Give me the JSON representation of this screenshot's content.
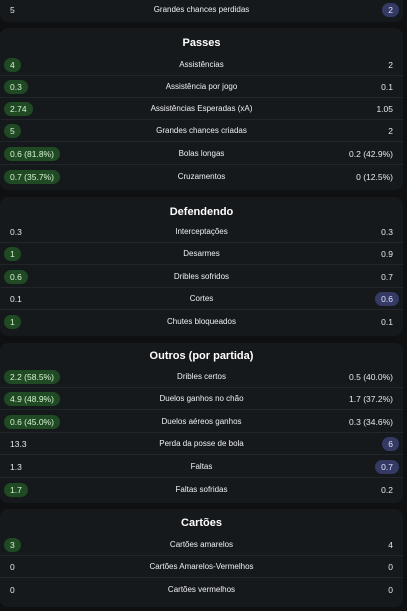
{
  "sections": [
    {
      "title": "",
      "rows": [
        {
          "label": "Grandes chances perdidas",
          "left": "5",
          "right": "2",
          "hl": "right"
        }
      ]
    },
    {
      "title": "Passes",
      "rows": [
        {
          "label": "Assistências",
          "left": "4",
          "right": "2",
          "hl": "left"
        },
        {
          "label": "Assistência por jogo",
          "left": "0.3",
          "right": "0.1",
          "hl": "left"
        },
        {
          "label": "Assistências Esperadas (xA)",
          "left": "2.74",
          "right": "1.05",
          "hl": "left"
        },
        {
          "label": "Grandes chances criadas",
          "left": "5",
          "right": "2",
          "hl": "left"
        },
        {
          "label": "Bolas longas",
          "left": "0.6 (81.8%)",
          "right": "0.2 (42.9%)",
          "hl": "left"
        },
        {
          "label": "Cruzamentos",
          "left": "0.7 (35.7%)",
          "right": "0 (12.5%)",
          "hl": "left"
        }
      ]
    },
    {
      "title": "Defendendo",
      "rows": [
        {
          "label": "Interceptações",
          "left": "0.3",
          "right": "0.3",
          "hl": "none"
        },
        {
          "label": "Desarmes",
          "left": "1",
          "right": "0.9",
          "hl": "left"
        },
        {
          "label": "Dribles sofridos",
          "left": "0.6",
          "right": "0.7",
          "hl": "left"
        },
        {
          "label": "Cortes",
          "left": "0.1",
          "right": "0.6",
          "hl": "right"
        },
        {
          "label": "Chutes bloqueados",
          "left": "1",
          "right": "0.1",
          "hl": "left"
        }
      ]
    },
    {
      "title": "Outros (por partida)",
      "rows": [
        {
          "label": "Dribles certos",
          "left": "2.2 (58.5%)",
          "right": "0.5 (40.0%)",
          "hl": "left"
        },
        {
          "label": "Duelos ganhos no chão",
          "left": "4.9 (48.9%)",
          "right": "1.7 (37.2%)",
          "hl": "left"
        },
        {
          "label": "Duelos aéreos ganhos",
          "left": "0.6 (45.0%)",
          "right": "0.3 (34.6%)",
          "hl": "left"
        },
        {
          "label": "Perda da posse de bola",
          "left": "13.3",
          "right": "6",
          "hl": "right"
        },
        {
          "label": "Faltas",
          "left": "1.3",
          "right": "0.7",
          "hl": "right"
        },
        {
          "label": "Faltas sofridas",
          "left": "1.7",
          "right": "0.2",
          "hl": "left"
        }
      ]
    },
    {
      "title": "Cartões",
      "rows": [
        {
          "label": "Cartões amarelos",
          "left": "3",
          "right": "4",
          "hl": "left"
        },
        {
          "label": "Cartões Amarelos-Vermelhos",
          "left": "0",
          "right": "0",
          "hl": "none"
        },
        {
          "label": "Cartões vermelhos",
          "left": "0",
          "right": "0",
          "hl": "none"
        }
      ]
    }
  ],
  "colors": {
    "page_bg": "#0e1012",
    "card_bg": "#16191c",
    "left_highlight": "#1f4a24",
    "right_highlight": "#353a64"
  }
}
